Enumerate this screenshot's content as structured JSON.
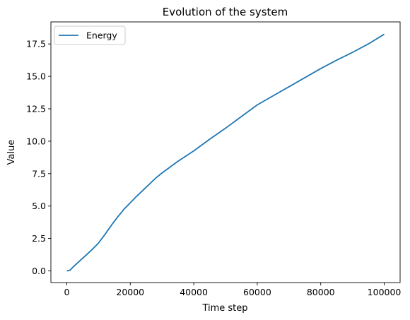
{
  "chart_data": {
    "type": "line",
    "title": "Evolution of the system",
    "xlabel": "Time step",
    "ylabel": "Value",
    "xlim": [
      -5000,
      105000
    ],
    "ylim": [
      -0.9,
      19.2
    ],
    "x_ticks": [
      0,
      20000,
      40000,
      60000,
      80000,
      100000
    ],
    "x_tick_labels": [
      "0",
      "20000",
      "40000",
      "60000",
      "80000",
      "100000"
    ],
    "y_ticks": [
      0.0,
      2.5,
      5.0,
      7.5,
      10.0,
      12.5,
      15.0,
      17.5
    ],
    "y_tick_labels": [
      "0.0",
      "2.5",
      "5.0",
      "7.5",
      "10.0",
      "12.5",
      "15.0",
      "17.5"
    ],
    "grid": false,
    "legend_position": "top-left",
    "series": [
      {
        "name": "Energy",
        "color": "#1f77b4",
        "x": [
          0,
          1000,
          2000,
          4000,
          6000,
          8000,
          10000,
          12000,
          14000,
          16000,
          18000,
          20000,
          22000,
          25000,
          28000,
          30000,
          35000,
          40000,
          45000,
          50000,
          55000,
          60000,
          65000,
          70000,
          75000,
          80000,
          85000,
          90000,
          95000,
          100000
        ],
        "y": [
          0.0,
          0.05,
          0.3,
          0.75,
          1.2,
          1.65,
          2.15,
          2.8,
          3.5,
          4.15,
          4.75,
          5.25,
          5.75,
          6.45,
          7.15,
          7.55,
          8.45,
          9.25,
          10.15,
          11.0,
          11.9,
          12.8,
          13.5,
          14.2,
          14.9,
          15.6,
          16.25,
          16.85,
          17.5,
          18.25
        ]
      }
    ]
  }
}
